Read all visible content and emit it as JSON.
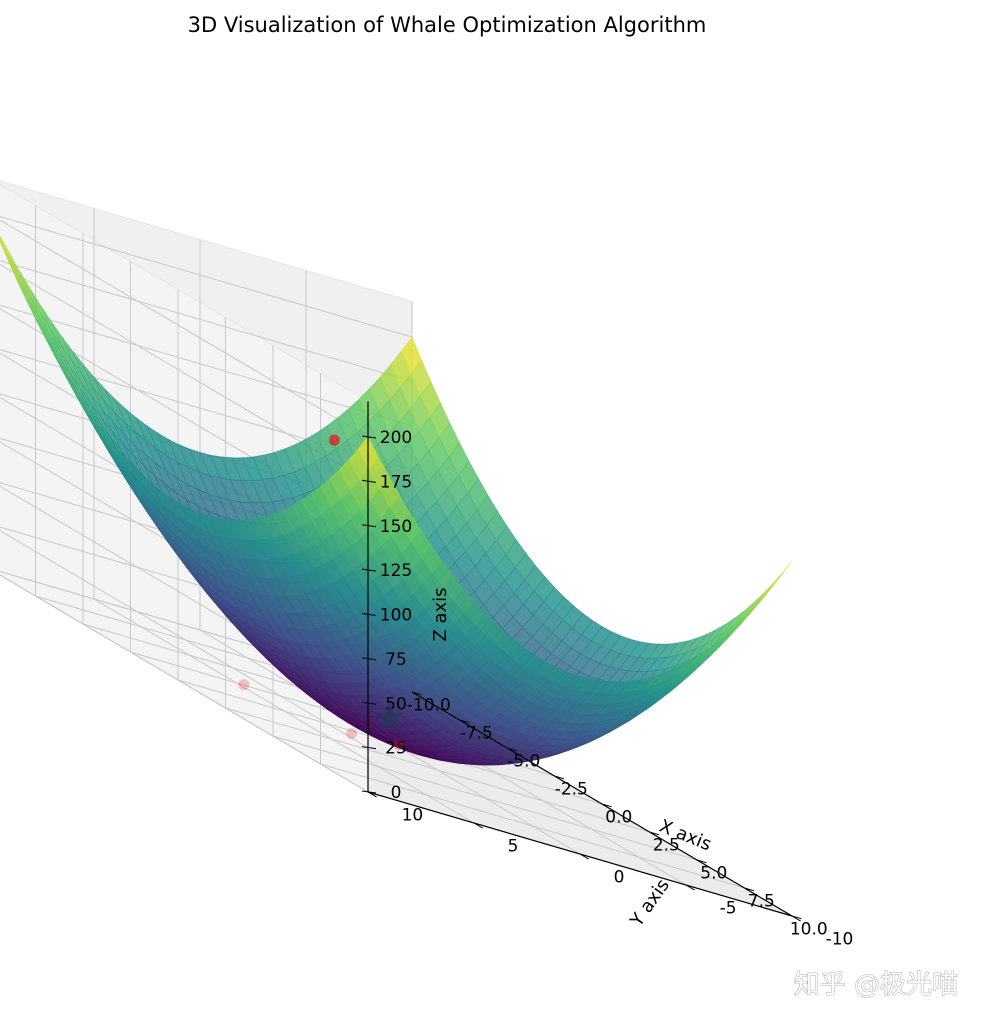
{
  "chart_data": {
    "type": "surface3d",
    "title": "3D Visualization of Whale Optimization Algorithm",
    "function": "z = x^2 + y^2",
    "xlabel": "X axis",
    "ylabel": "Y axis",
    "zlabel": "Z axis",
    "xlim": [
      -10,
      10
    ],
    "ylim": [
      -10,
      10
    ],
    "zlim": [
      0,
      200
    ],
    "x_ticks": [
      "-10.0",
      "-7.5",
      "-5.0",
      "-2.5",
      "0.0",
      "2.5",
      "5.0",
      "7.5",
      "10.0"
    ],
    "y_ticks": [
      "-10",
      "-5",
      "0",
      "5",
      "10"
    ],
    "z_ticks": [
      "0",
      "25",
      "50",
      "75",
      "100",
      "125",
      "150",
      "175",
      "200"
    ],
    "colormap": "viridis",
    "colormap_stops": [
      "#440154",
      "#3b528b",
      "#21918c",
      "#5ec962",
      "#fde725"
    ],
    "grid": true,
    "pane_color": "#f2f2f2",
    "whales": [
      {
        "x": -1.0,
        "y": 6.0,
        "z": 5
      },
      {
        "x": 1.0,
        "y": 0.5,
        "z": 3
      },
      {
        "x": 3.0,
        "y": 4.5,
        "z": 8
      },
      {
        "x": 6.0,
        "y": 8.0,
        "z": 180
      }
    ],
    "whale_color": "#e31a1c",
    "best_position": {
      "x": 0.0,
      "y": 0.0,
      "z": 0,
      "marker": "star"
    },
    "best_color": "#1f3b5a"
  },
  "watermark": "知乎 @极光喵"
}
